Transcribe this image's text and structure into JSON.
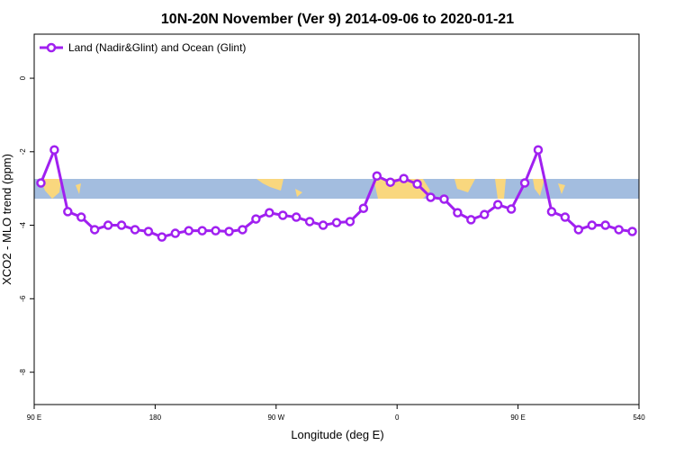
{
  "chart_data": {
    "type": "line",
    "title": "10N-20N November (Ver 9)   2014-09-06 to 2020-01-21",
    "x_label": "Longitude (deg E)",
    "y_label": "XCO2 - MLO trend (ppm)",
    "x": [
      95,
      105,
      115,
      125,
      135,
      145,
      155,
      165,
      175,
      185,
      195,
      205,
      215,
      225,
      235,
      245,
      255,
      265,
      275,
      285,
      295,
      305,
      315,
      325,
      335,
      345,
      355,
      365,
      375,
      385,
      395,
      405,
      415,
      425,
      435,
      445,
      455,
      465,
      475,
      485,
      495,
      505,
      515,
      525,
      535
    ],
    "series": [
      {
        "name": "Land (Nadir&Glint) and Ocean (Glint)",
        "color": "#a020f0",
        "values": [
          -2.85,
          -1.95,
          -3.63,
          -3.78,
          -4.12,
          -4.0,
          -4.0,
          -4.12,
          -4.17,
          -4.32,
          -4.22,
          -4.15,
          -4.15,
          -4.15,
          -4.17,
          -4.12,
          -3.83,
          -3.66,
          -3.73,
          -3.78,
          -3.9,
          -4.0,
          -3.93,
          -3.9,
          -3.54,
          -2.66,
          -2.83,
          -2.73,
          -2.88,
          -3.24,
          -3.29,
          -3.66,
          -3.85,
          -3.71,
          -3.44,
          -3.56,
          -2.85,
          -1.95,
          -3.63,
          -3.78,
          -4.12,
          -4.0,
          -4.0,
          -4.12,
          -4.17
        ]
      }
    ],
    "xlim": [
      90,
      540
    ],
    "ylim": [
      1.2,
      -8.88
    ],
    "xticks": [
      {
        "value": 90,
        "label": "90 E"
      },
      180,
      {
        "value": 270,
        "label": "90 W"
      },
      {
        "value": 360,
        "label": "0"
      },
      {
        "value": 450,
        "label": "90 E"
      },
      540
    ],
    "yticks": [
      0,
      -2,
      -4,
      -6,
      -8
    ],
    "legend": "top-left"
  }
}
